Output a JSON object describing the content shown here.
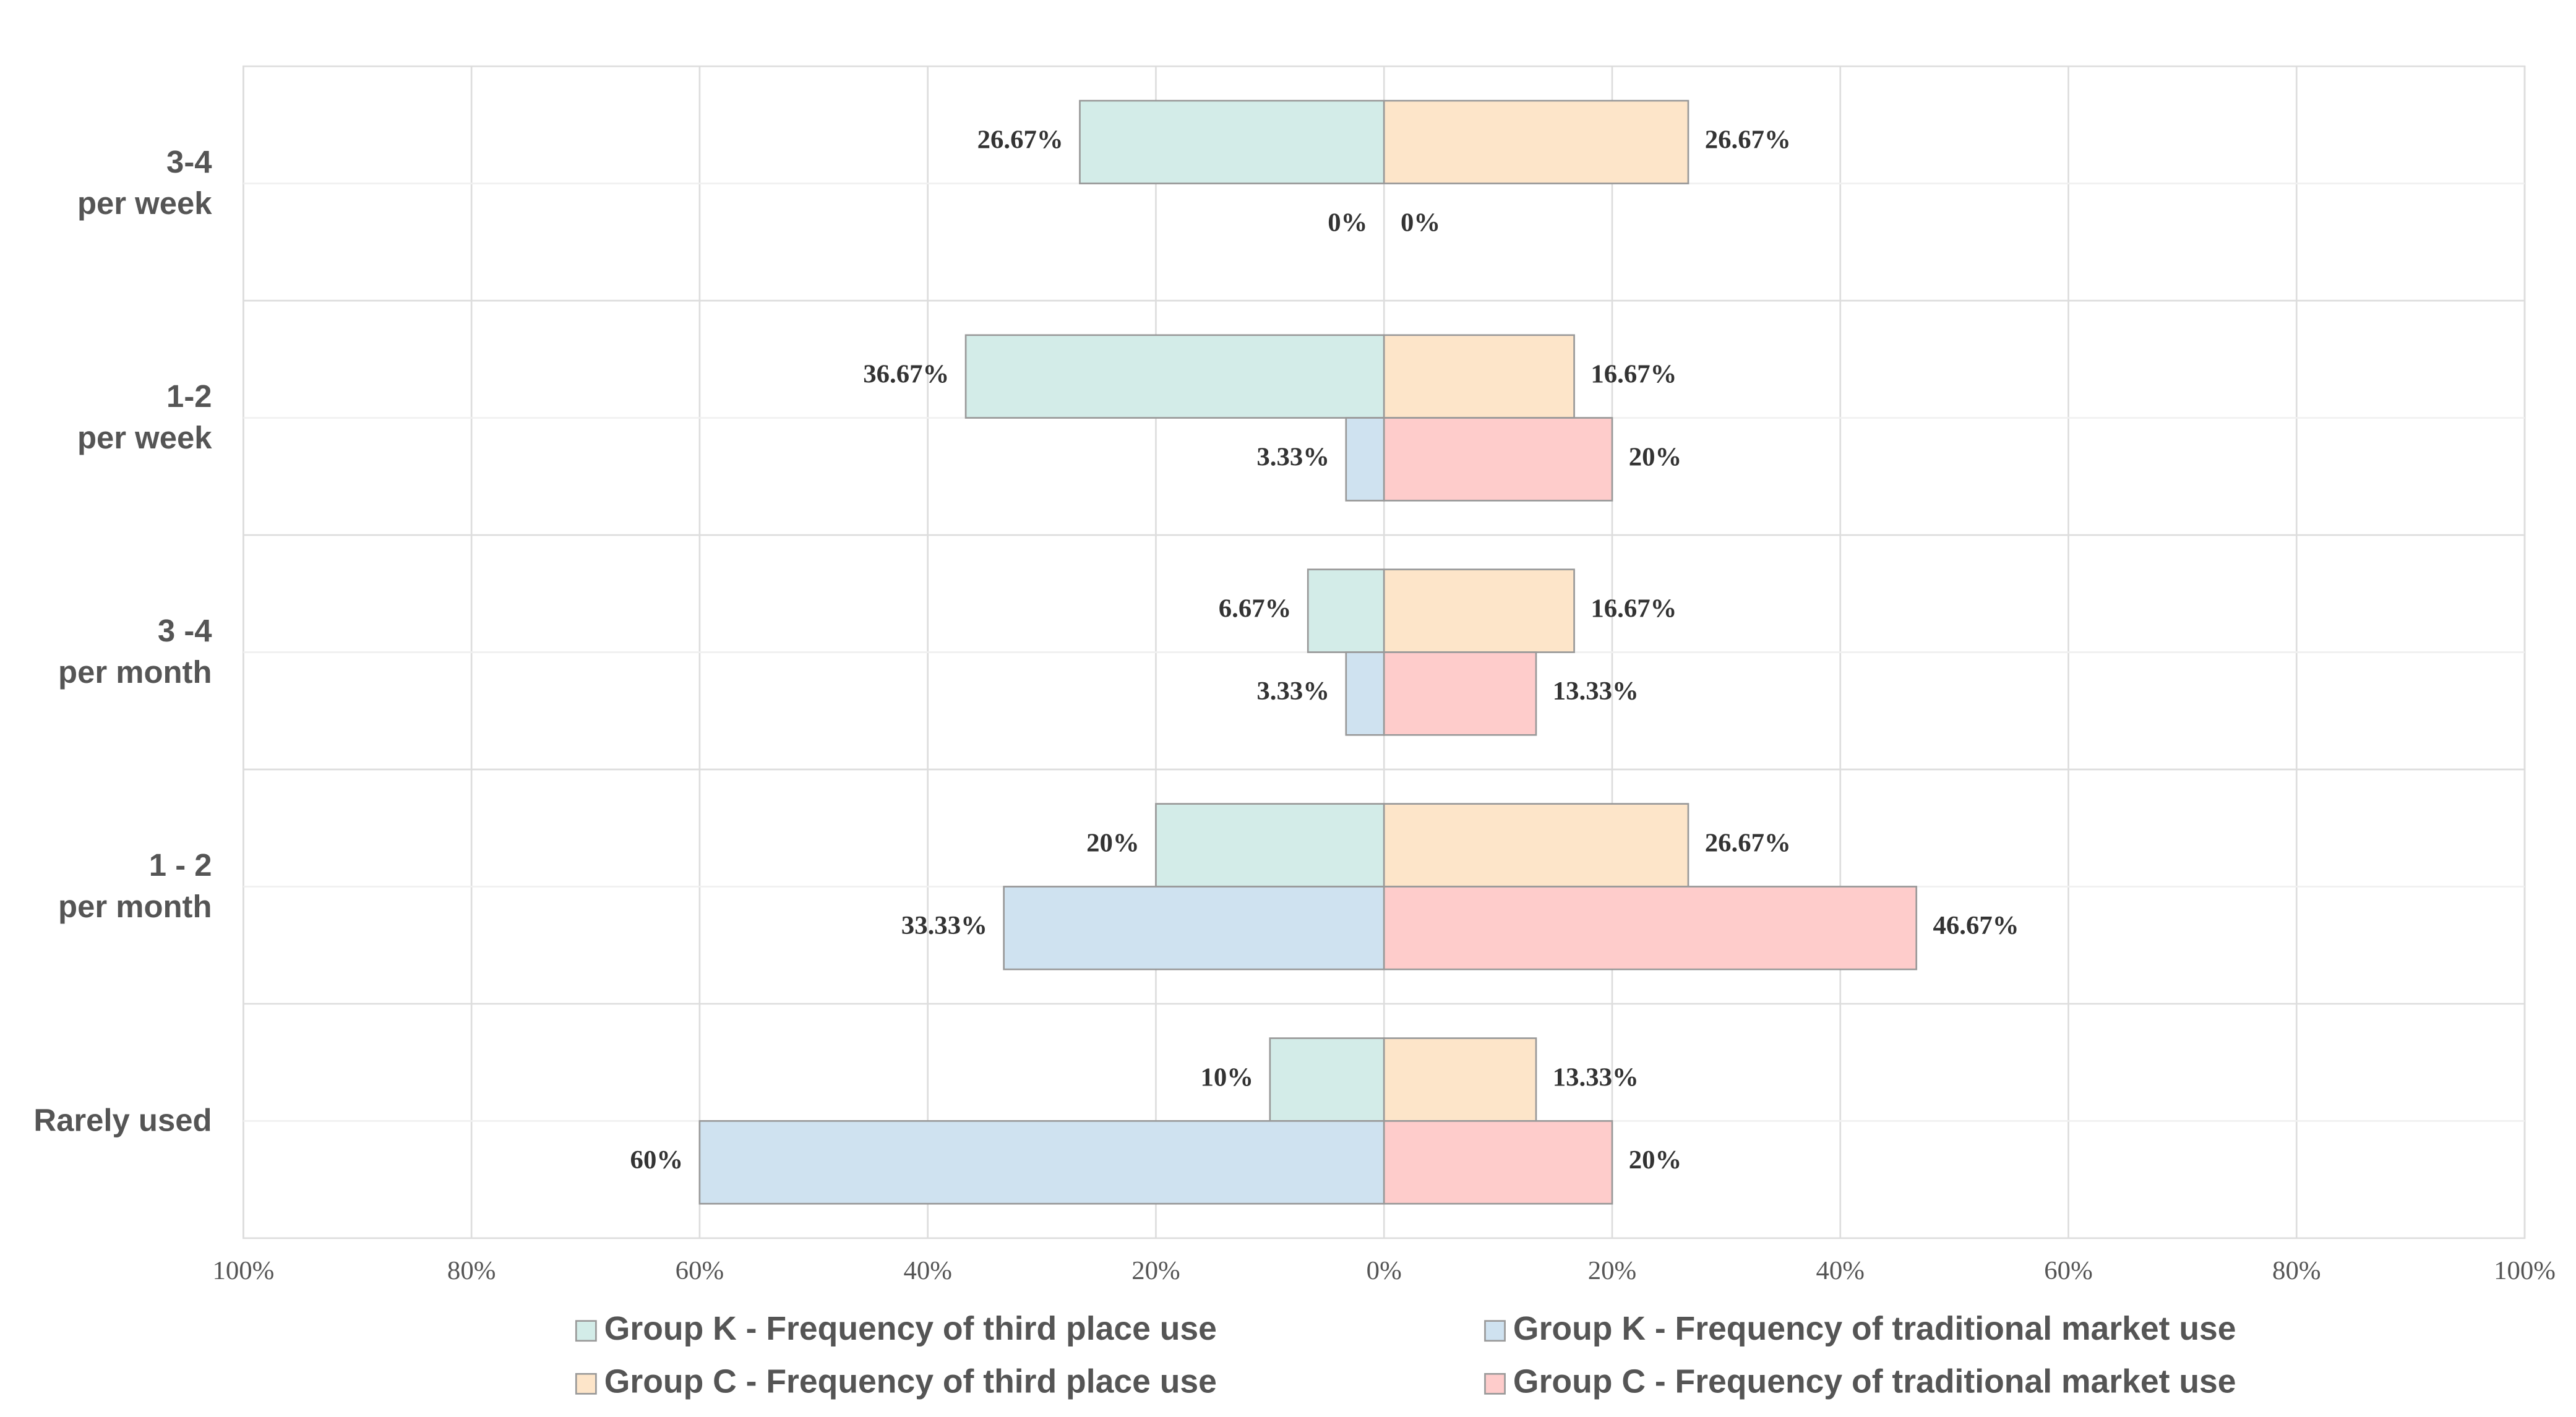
{
  "chart_data": {
    "type": "diverging-bar",
    "categories": [
      "3-4\nper week",
      "1-2\nper week",
      "3 -4\nper month",
      "1 - 2\nper month",
      "Rarely used"
    ],
    "series": [
      {
        "name": "Group K - Frequency of third place use",
        "color": "#d3ece8",
        "values": [
          -26.67,
          -36.67,
          -6.67,
          -20,
          -10
        ],
        "value_labels": [
          "26.67%",
          "36.67%",
          "6.67%",
          "20%",
          "10%"
        ]
      },
      {
        "name": "Group K - Frequency of traditional market use",
        "color": "#cfe2f0",
        "values": [
          0,
          -3.33,
          -3.33,
          -33.33,
          -60
        ],
        "value_labels": [
          "0%",
          "3.33%",
          "3.33%",
          "33.33%",
          "60%"
        ]
      },
      {
        "name": "Group C - Frequency of third place use",
        "color": "#fde5c9",
        "values": [
          26.67,
          16.67,
          16.67,
          26.67,
          13.33
        ],
        "value_labels": [
          "26.67%",
          "16.67%",
          "16.67%",
          "26.67%",
          "13.33%"
        ]
      },
      {
        "name": "Group C - Frequency of traditional market use",
        "color": "#fecccb",
        "values": [
          0,
          20,
          13.33,
          46.67,
          20
        ],
        "value_labels": [
          "0%",
          "20%",
          "13.33%",
          "46.67%",
          "20%"
        ]
      }
    ],
    "xlim": [
      -100,
      100
    ],
    "xticks": [
      {
        "value": -100,
        "label": "100%"
      },
      {
        "value": -80,
        "label": "80%"
      },
      {
        "value": -60,
        "label": "60%"
      },
      {
        "value": -40,
        "label": "40%"
      },
      {
        "value": -20,
        "label": "20%"
      },
      {
        "value": 0,
        "label": "0%"
      },
      {
        "value": 20,
        "label": "20%"
      },
      {
        "value": 40,
        "label": "40%"
      },
      {
        "value": 60,
        "label": "60%"
      },
      {
        "value": 80,
        "label": "80%"
      },
      {
        "value": 100,
        "label": "100%"
      }
    ],
    "grid": true,
    "legend": "bottom"
  }
}
